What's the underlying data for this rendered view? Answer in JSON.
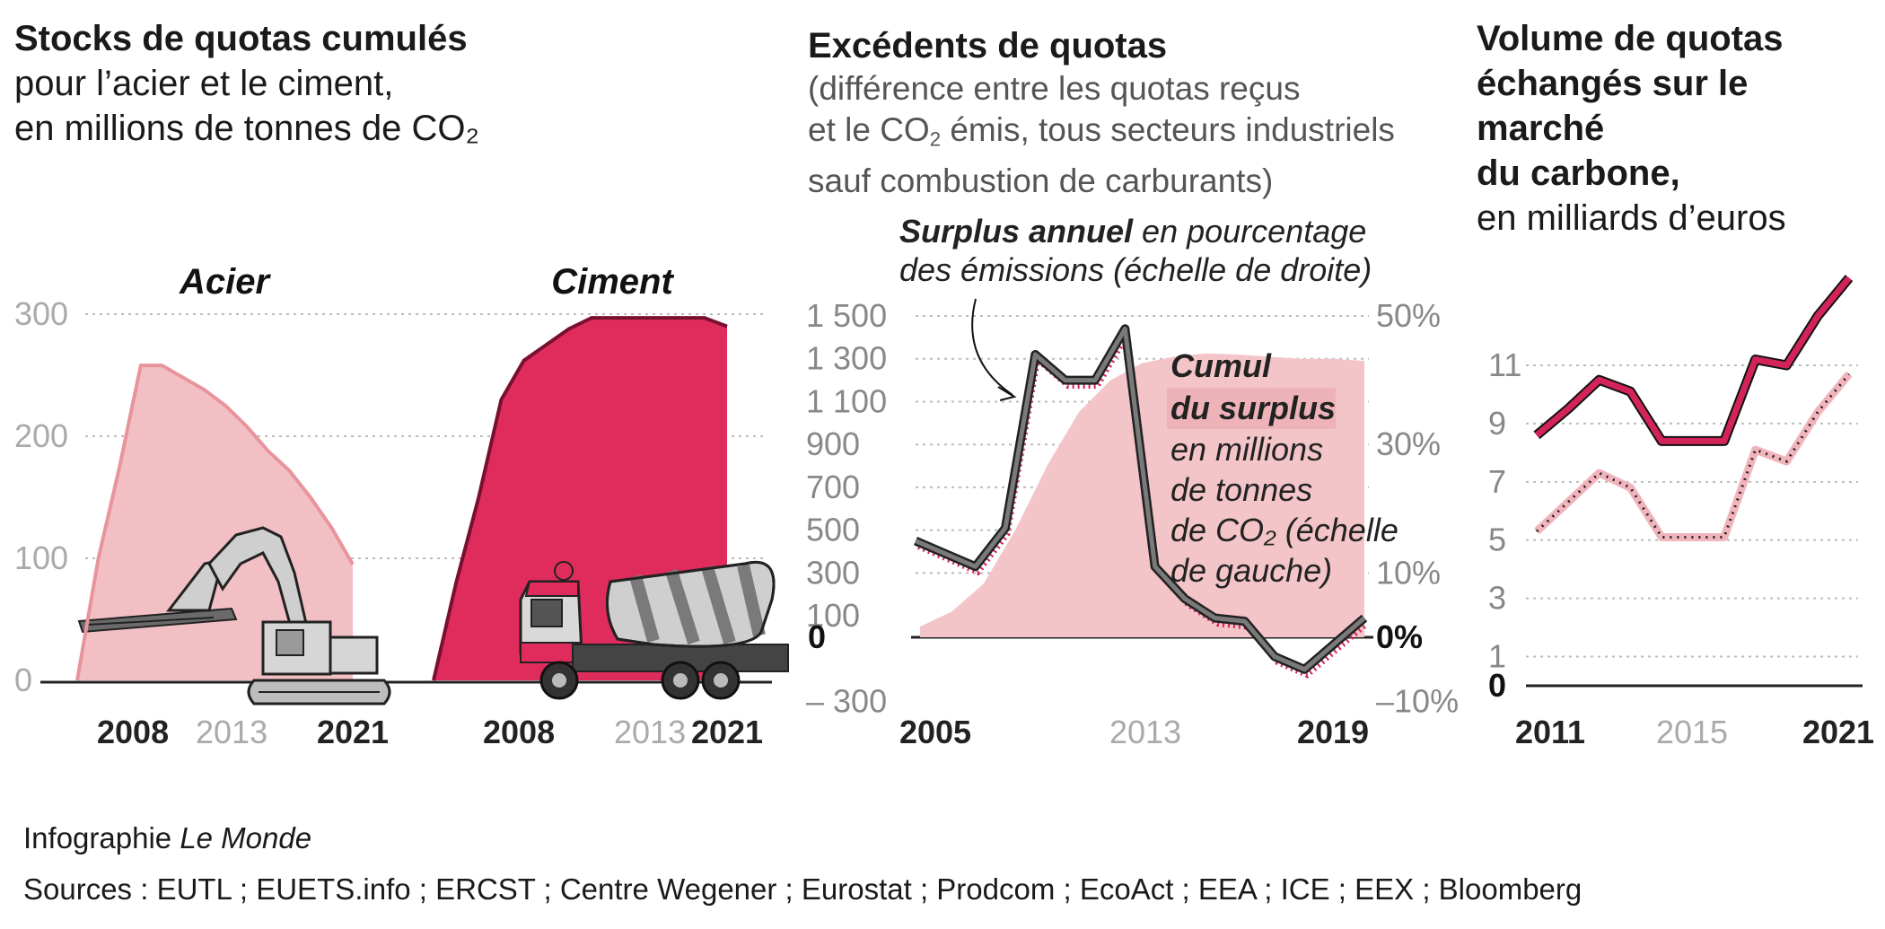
{
  "panels": {
    "a": {
      "title": "Stocks de quotas cumulés",
      "subtitle_line1": "pour l’acier et le ciment,",
      "subtitle_line2": "en millions de tonnes de CO₂"
    },
    "b": {
      "title": "Excédents de quotas",
      "subtitle_line1": "(différence entre les quotas reçus",
      "subtitle_line2a": "et le CO",
      "subtitle_line2_sub": "2",
      "subtitle_line2b": " émis, tous secteurs industriels",
      "subtitle_line3": "sauf combustion de carburants)"
    },
    "c": {
      "title_line1": "Volume de quotas",
      "title_line2": "échangés sur le marché",
      "title_line3": "du carbone,",
      "subtitle": "en milliards d’euros"
    }
  },
  "footer": {
    "credit_prefix": "Infographie ",
    "credit_italic": "Le Monde",
    "sources": "Sources : EUTL ; EUETS.info ; ERCST ; Centre Wegener ; Eurostat ; Prodcom ; EcoAct ; EEA ; ICE ; EEX ; Bloomberg"
  },
  "colors": {
    "acier_fill": "#f2c0c4",
    "acier_line": "#e8949c",
    "ciment_fill": "#df2c5c",
    "ciment_line": "#7a1030",
    "surplus_fill": "#f3c4c8",
    "annual_line": "#7a7a7a",
    "annual_shadow": "#d3245a",
    "volume_dark": "#d3245a",
    "volume_light": "#f2b4bc",
    "grid": "#bbbbbb",
    "tick_light": "#aaaaaa",
    "tick_mid": "#888888"
  },
  "chart_data": [
    {
      "type": "area",
      "panel": "acier-ciment",
      "series": [
        {
          "name": "Acier",
          "x": [
            2008,
            2009,
            2010,
            2011,
            2012,
            2013,
            2014,
            2015,
            2016,
            2017,
            2018,
            2019,
            2020,
            2021
          ],
          "values": [
            0,
            100,
            175,
            258,
            258,
            248,
            238,
            225,
            208,
            188,
            172,
            150,
            125,
            95
          ]
        },
        {
          "name": "Ciment",
          "x": [
            2008,
            2009,
            2010,
            2011,
            2012,
            2013,
            2014,
            2015,
            2016,
            2017,
            2018,
            2019,
            2020,
            2021
          ],
          "values": [
            0,
            80,
            150,
            230,
            262,
            275,
            288,
            297,
            297,
            297,
            297,
            297,
            297,
            290
          ]
        }
      ],
      "yticks": [
        0,
        100,
        200,
        300
      ],
      "ylim": [
        0,
        300
      ],
      "xticks_strong": [
        "2008",
        "2021"
      ],
      "xtick_light": "2013"
    },
    {
      "type": "area",
      "panel": "excedents",
      "x": [
        2005,
        2006,
        2007,
        2008,
        2009,
        2010,
        2011,
        2012,
        2013,
        2014,
        2015,
        2016,
        2017,
        2018,
        2019
      ],
      "cumul_label_bold_1": "Cumul",
      "cumul_label_bold_2": "du surplus",
      "cumul_label_italic": [
        "en millions",
        "de tonnes",
        "de CO₂ (échelle",
        "de gauche)"
      ],
      "cumul_values": [
        50,
        120,
        250,
        500,
        800,
        1050,
        1200,
        1280,
        1310,
        1325,
        1320,
        1310,
        1300,
        1300,
        1290
      ],
      "annual_label_bold": "Surplus annuel",
      "annual_label_italic_1": " en pourcentage",
      "annual_label_italic_2": "des émissions (échelle de droite)",
      "annual_pct_values": [
        15,
        13,
        11,
        17,
        44,
        40,
        40,
        48,
        11,
        6,
        3,
        2.5,
        -3,
        -5,
        -1,
        3
      ],
      "annual_x": [
        2005,
        2006,
        2007,
        2008,
        2009,
        2010,
        2011,
        2012,
        2013,
        2014,
        2015,
        2016,
        2017,
        2018,
        2019,
        2020
      ],
      "left_yticks": [
        "1 500",
        "1 300",
        "1 100",
        "900",
        "700",
        "500",
        "300",
        "100",
        "0",
        "– 300"
      ],
      "left_ytick_values": [
        1500,
        1300,
        1100,
        900,
        700,
        500,
        300,
        100,
        0,
        -300
      ],
      "right_yticks": [
        "50%",
        "30%",
        "10%",
        "0%",
        "–10%"
      ],
      "right_ytick_values": [
        50,
        30,
        10,
        0,
        -10
      ],
      "xticks_strong": [
        "2005",
        "2019"
      ],
      "xtick_light": "2013"
    },
    {
      "type": "line",
      "panel": "volume",
      "x": [
        2011,
        2012,
        2013,
        2014,
        2015,
        2016,
        2017,
        2018,
        2019,
        2020,
        2021
      ],
      "series": [
        {
          "values": [
            8.6,
            9.5,
            10.5,
            10.1,
            8.4,
            8.4,
            8.4,
            11.2,
            11.0,
            12.7,
            14.0
          ]
        },
        {
          "values": [
            5.3,
            6.3,
            7.3,
            6.8,
            5.1,
            5.1,
            5.1,
            8.1,
            7.7,
            9.4,
            10.7
          ]
        }
      ],
      "yticks": [
        0,
        1,
        3,
        5,
        7,
        9,
        11
      ],
      "ylim": [
        0,
        14
      ],
      "xticks_strong": [
        "2011",
        "2021"
      ],
      "xtick_light": "2015"
    }
  ]
}
